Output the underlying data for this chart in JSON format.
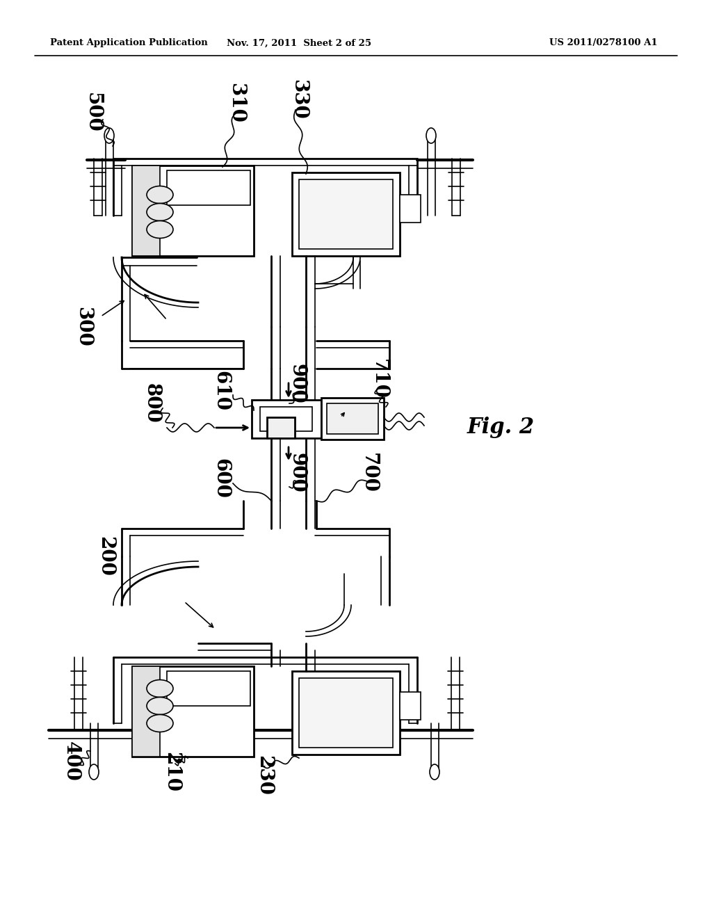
{
  "title_left": "Patent Application Publication",
  "title_mid": "Nov. 17, 2011  Sheet 2 of 25",
  "title_right": "US 2011/0278100 A1",
  "fig_label": "Fig. 2",
  "bg_color": "#ffffff",
  "line_color": "#000000",
  "fig_width": 10.24,
  "fig_height": 13.2,
  "dpi": 100
}
